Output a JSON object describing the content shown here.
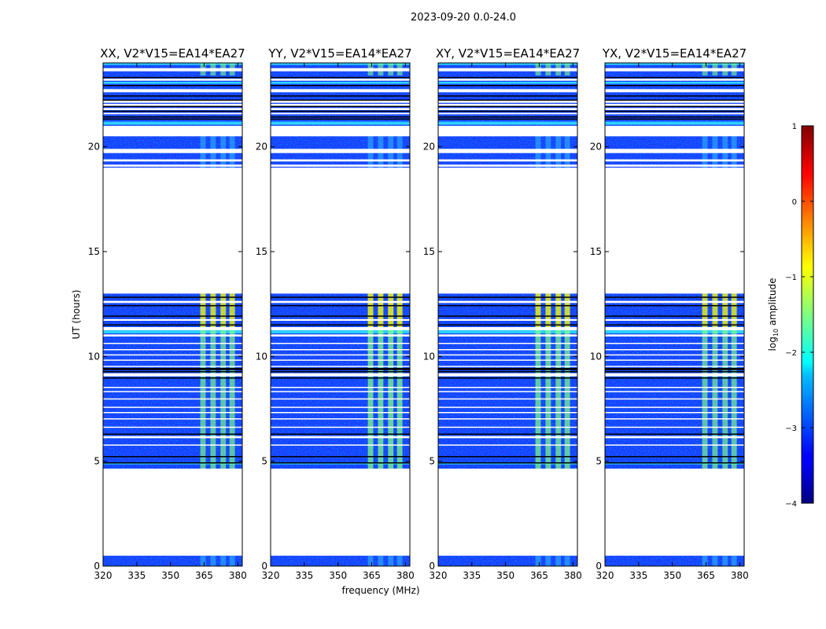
{
  "chart_data": {
    "type": "heatmap",
    "suptitle": "2023-09-20 0.0-24.0",
    "xlabel": "frequency (MHz)",
    "ylabel": "UT (hours)",
    "xlim": [
      320,
      382
    ],
    "ylim": [
      0,
      24
    ],
    "xticks": [
      320,
      335,
      350,
      365,
      380
    ],
    "yticks": [
      0,
      5,
      10,
      15,
      20
    ],
    "panels": [
      {
        "title": "XX, V2*V15=EA14*EA27",
        "id": "xx"
      },
      {
        "title": "YY, V2*V15=EA14*EA27",
        "id": "yy"
      },
      {
        "title": "XY, V2*V15=EA14*EA27",
        "id": "xy"
      },
      {
        "title": "YX, V2*V15=EA14*EA27",
        "id": "yx"
      }
    ],
    "colorbar": {
      "label": "log10 amplitude",
      "label_base": "log",
      "label_sub": "10",
      "label_rest": " amplitude",
      "min": -4,
      "max": 1,
      "ticks": [
        -4,
        -3,
        -2,
        -1,
        0,
        1
      ],
      "colormap": "jet"
    },
    "data_blocks_ut": [
      [
        0.0,
        0.5
      ],
      [
        4.6,
        13.0
      ],
      [
        19.0,
        24.0
      ]
    ],
    "rfi_band_mhz": [
      363,
      381
    ],
    "rfi_channel_centers_mhz": [
      366,
      371,
      376,
      380
    ]
  }
}
